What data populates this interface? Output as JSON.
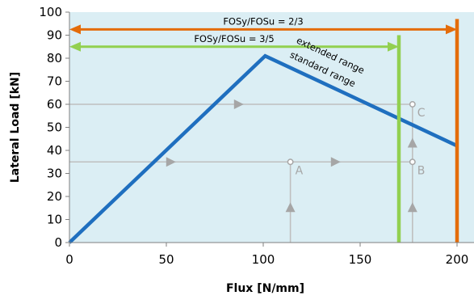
{
  "chart_data": {
    "type": "line",
    "xlabel": "Flux [N/mm]",
    "ylabel": "Lateral Load [kN]",
    "xlim": [
      0,
      200
    ],
    "ylim": [
      0,
      100
    ],
    "xticks": [
      0,
      50,
      100,
      150,
      200
    ],
    "yticks": [
      0,
      10,
      20,
      30,
      40,
      50,
      60,
      70,
      80,
      90,
      100
    ],
    "grid": false,
    "colors": {
      "background_region": "#dbeef4",
      "load_curve": "#1f6fbf",
      "limit_3_5": "#92d050",
      "limit_2_3": "#e46c0a",
      "guide_lines": "#bfbfbf",
      "guide_markers": "#a6a6a6"
    },
    "series": [
      {
        "x": [
          0,
          101,
          200
        ],
        "y": [
          0,
          81,
          42
        ]
      }
    ],
    "vertical_lines": [
      {
        "x": 170,
        "y": [
          0,
          90
        ],
        "color": "#92d050"
      },
      {
        "x": 200,
        "y": [
          0,
          97
        ],
        "color": "#e46c0a"
      }
    ],
    "range_arrows": [
      {
        "label": "FOSy/FOSu = 2/3",
        "x": [
          0,
          200
        ],
        "y": 92.5,
        "color": "#e46c0a"
      },
      {
        "label": "FOSy/FOSu = 3/5",
        "x": [
          0,
          170
        ],
        "y": 85,
        "color": "#92d050"
      }
    ],
    "curve_labels": [
      {
        "text": "extended range",
        "x": 134,
        "y": 80
      },
      {
        "text": "standard range",
        "x": 130,
        "y": 74
      }
    ],
    "points": [
      {
        "label": "A",
        "x": 114,
        "y": 35
      },
      {
        "label": "B",
        "x": 177,
        "y": 35
      },
      {
        "label": "C",
        "x": 177,
        "y": 60
      }
    ],
    "guide_lines": [
      {
        "from": [
          0,
          35
        ],
        "to": [
          177,
          35
        ]
      },
      {
        "from": [
          0,
          60
        ],
        "to": [
          177,
          60
        ]
      },
      {
        "from": [
          114,
          0
        ],
        "to": [
          114,
          35
        ]
      },
      {
        "from": [
          177,
          0
        ],
        "to": [
          177,
          60
        ]
      }
    ],
    "guide_arrows": [
      {
        "x": 52,
        "y": 35,
        "dir": "right"
      },
      {
        "x": 137,
        "y": 35,
        "dir": "right"
      },
      {
        "x": 87,
        "y": 60,
        "dir": "right"
      },
      {
        "x": 114,
        "y": 15,
        "dir": "up"
      },
      {
        "x": 177,
        "y": 15,
        "dir": "up"
      },
      {
        "x": 177,
        "y": 43,
        "dir": "up"
      }
    ]
  }
}
